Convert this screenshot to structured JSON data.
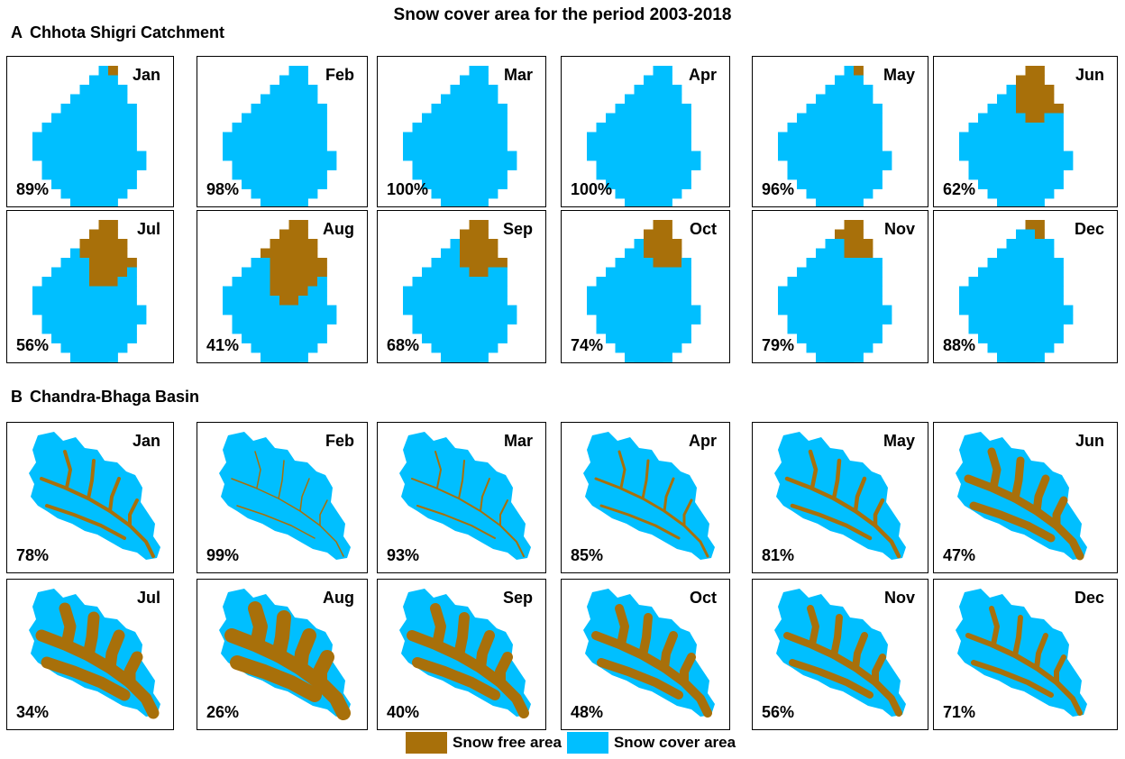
{
  "title": "Snow cover area for the period 2003-2018",
  "colors": {
    "snow_cover": "#00BFFF",
    "snow_free": "#A8700A",
    "border": "#000000"
  },
  "section_a": {
    "letter": "A",
    "label": "Chhota Shigri Catchment",
    "panels": [
      {
        "month": "Jan",
        "percent": "89%"
      },
      {
        "month": "Feb",
        "percent": "98%"
      },
      {
        "month": "Mar",
        "percent": "100%"
      },
      {
        "month": "Apr",
        "percent": "100%"
      },
      {
        "month": "May",
        "percent": "96%"
      },
      {
        "month": "Jun",
        "percent": "62%"
      },
      {
        "month": "Jul",
        "percent": "56%"
      },
      {
        "month": "Aug",
        "percent": "41%"
      },
      {
        "month": "Sep",
        "percent": "68%"
      },
      {
        "month": "Oct",
        "percent": "74%"
      },
      {
        "month": "Nov",
        "percent": "79%"
      },
      {
        "month": "Dec",
        "percent": "88%"
      }
    ]
  },
  "section_b": {
    "letter": "B",
    "label": "Chandra-Bhaga Basin",
    "panels": [
      {
        "month": "Jan",
        "percent": "78%"
      },
      {
        "month": "Feb",
        "percent": "99%"
      },
      {
        "month": "Mar",
        "percent": "93%"
      },
      {
        "month": "Apr",
        "percent": "85%"
      },
      {
        "month": "May",
        "percent": "81%"
      },
      {
        "month": "Jun",
        "percent": "47%"
      },
      {
        "month": "Jul",
        "percent": "34%"
      },
      {
        "month": "Aug",
        "percent": "26%"
      },
      {
        "month": "Sep",
        "percent": "40%"
      },
      {
        "month": "Oct",
        "percent": "48%"
      },
      {
        "month": "Nov",
        "percent": "56%"
      },
      {
        "month": "Dec",
        "percent": "71%"
      }
    ]
  },
  "legend": {
    "snow_free_label": "Snow free area",
    "snow_cover_label": "Snow cover area"
  }
}
